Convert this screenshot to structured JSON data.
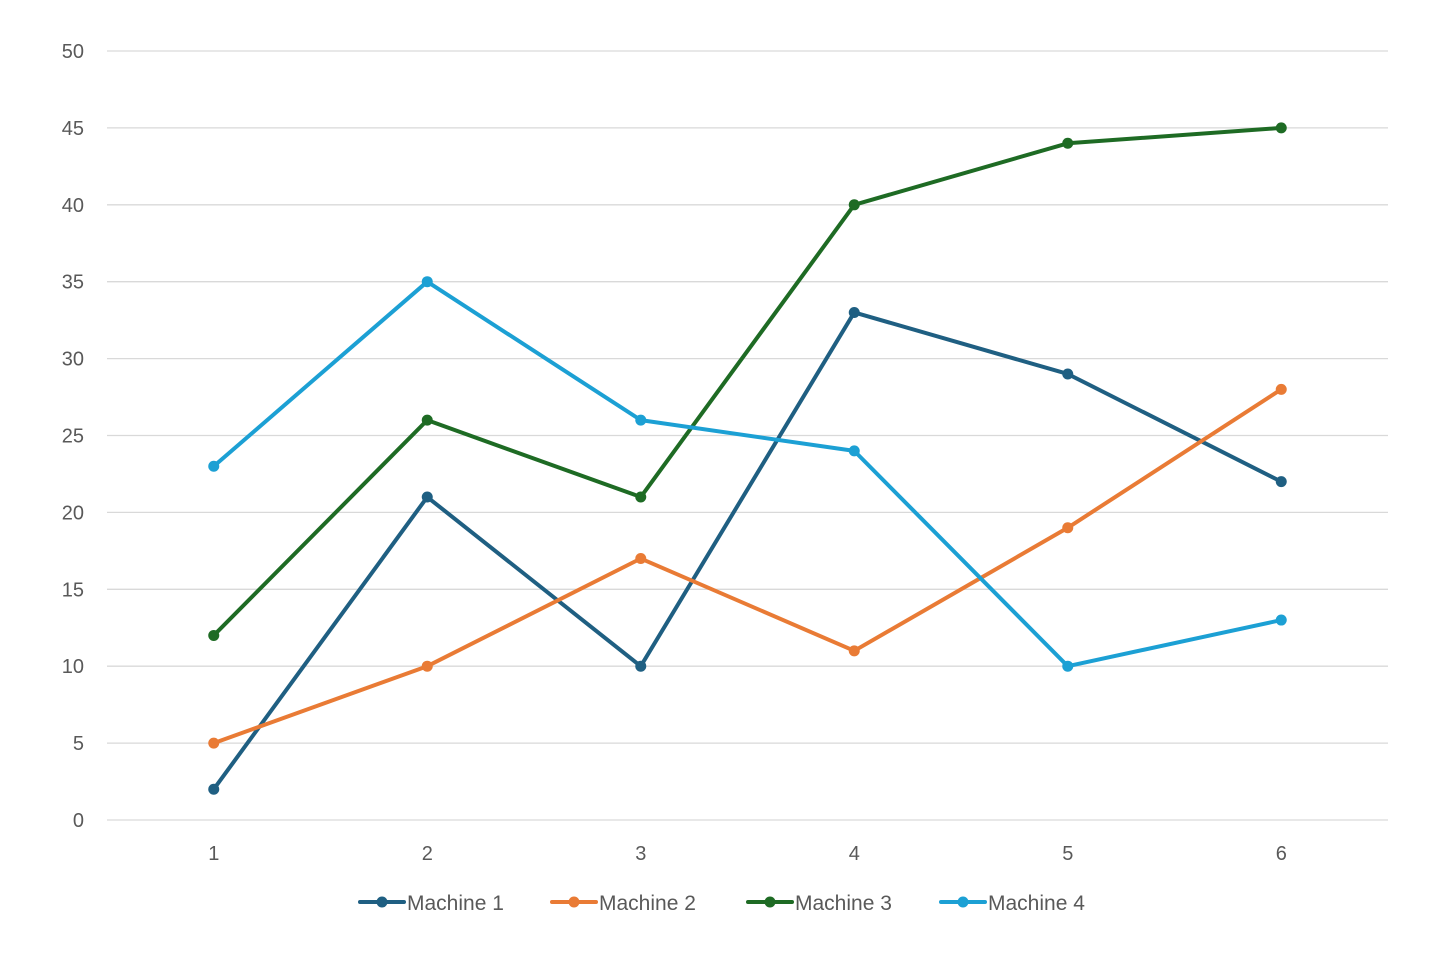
{
  "chart_data": {
    "type": "line",
    "title": "",
    "xlabel": "",
    "ylabel": "",
    "categories": [
      "1",
      "2",
      "3",
      "4",
      "5",
      "6"
    ],
    "ylim": [
      0,
      50
    ],
    "yticks": [
      0,
      5,
      10,
      15,
      20,
      25,
      30,
      35,
      40,
      45,
      50
    ],
    "grid": true,
    "legend_position": "bottom",
    "series": [
      {
        "name": "Machine 1",
        "color": "#1f5f82",
        "values": [
          2,
          21,
          10,
          33,
          29,
          22
        ]
      },
      {
        "name": "Machine 2",
        "color": "#e97b35",
        "values": [
          5,
          10,
          17,
          11,
          19,
          28
        ]
      },
      {
        "name": "Machine 3",
        "color": "#1e6b24",
        "values": [
          12,
          26,
          21,
          40,
          44,
          45
        ]
      },
      {
        "name": "Machine 4",
        "color": "#1ca0d4",
        "values": [
          23,
          35,
          26,
          24,
          10,
          13
        ]
      }
    ]
  }
}
